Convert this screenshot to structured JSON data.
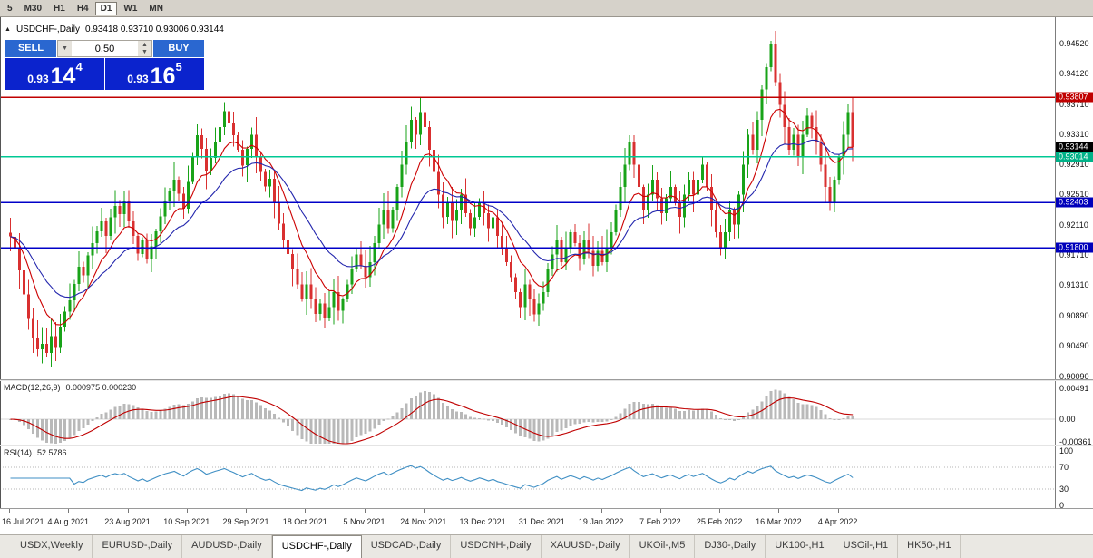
{
  "toolbar": {
    "timeframes": [
      {
        "label": "5",
        "active": false
      },
      {
        "label": "M30",
        "active": false
      },
      {
        "label": "H1",
        "active": false
      },
      {
        "label": "H4",
        "active": false
      },
      {
        "label": "D1",
        "active": true
      },
      {
        "label": "W1",
        "active": false
      },
      {
        "label": "MN",
        "active": false
      }
    ]
  },
  "chart_header": {
    "symbol": "USDCHF-,Daily",
    "ohlc": "0.93418 0.93710 0.93006 0.93144"
  },
  "trade_panel": {
    "sell_label": "SELL",
    "buy_label": "BUY",
    "volume": "0.50",
    "sell_price_whole": "0.93",
    "sell_price_big": "14",
    "sell_price_sup": "4",
    "buy_price_whole": "0.93",
    "buy_price_big": "16",
    "buy_price_sup": "5"
  },
  "price_scale": {
    "labels": [
      "0.94520",
      "0.94120",
      "0.93710",
      "0.93310",
      "0.92910",
      "0.92510",
      "0.92110",
      "0.91710",
      "0.91310",
      "0.90890",
      "0.90490",
      "0.90090"
    ],
    "markers": [
      {
        "label": "0.93807",
        "price": 0.93807,
        "bg": "#c00000"
      },
      {
        "label": "0.93144",
        "price": 0.93144,
        "bg": "#000000"
      },
      {
        "label": "0.93014",
        "price": 0.93014,
        "bg": "#00b288"
      },
      {
        "label": "0.92403",
        "price": 0.92403,
        "bg": "#0000bb"
      },
      {
        "label": "0.91800",
        "price": 0.918,
        "bg": "#0000bb"
      }
    ]
  },
  "hlines": [
    {
      "price": 0.93807,
      "color": "#c00000"
    },
    {
      "price": 0.93014,
      "color": "#00c894"
    },
    {
      "price": 0.92403,
      "color": "#0000c8"
    },
    {
      "price": 0.918,
      "color": "#0000c8"
    }
  ],
  "colors": {
    "candle_up": "#18a318",
    "candle_down": "#d93030",
    "ma_fast": "#cc0000",
    "ma_slow": "#2326ad",
    "macd_hist": "#b9b9b9",
    "macd_signal": "#c00000",
    "rsi_line": "#3f8fc4"
  },
  "chart_data": {
    "type": "candlestick",
    "title": "USDCHF-,Daily",
    "y_range": [
      0.9006,
      0.9479
    ],
    "x_labels": [
      "16 Jul 2021",
      "4 Aug 2021",
      "23 Aug 2021",
      "10 Sep 2021",
      "29 Sep 2021",
      "18 Oct 2021",
      "5 Nov 2021",
      "24 Nov 2021",
      "13 Dec 2021",
      "31 Dec 2021",
      "19 Jan 2022",
      "7 Feb 2022",
      "25 Feb 2022",
      "16 Mar 2022",
      "4 Apr 2022"
    ],
    "bars_per_label": 13,
    "first_open": 0.92,
    "close": [
      0.9195,
      0.918,
      0.915,
      0.9118,
      0.9085,
      0.906,
      0.9045,
      0.9052,
      0.904,
      0.9062,
      0.9048,
      0.9075,
      0.9095,
      0.911,
      0.9132,
      0.9155,
      0.9143,
      0.917,
      0.9186,
      0.9202,
      0.9215,
      0.9196,
      0.9221,
      0.9236,
      0.9225,
      0.9242,
      0.9215,
      0.9196,
      0.9172,
      0.919,
      0.9165,
      0.9182,
      0.9202,
      0.9222,
      0.9242,
      0.9256,
      0.9271,
      0.9252,
      0.9232,
      0.9268,
      0.9301,
      0.933,
      0.9312,
      0.9282,
      0.93,
      0.9322,
      0.9341,
      0.9362,
      0.9346,
      0.933,
      0.9311,
      0.929,
      0.9312,
      0.9331,
      0.9302,
      0.9281,
      0.9262,
      0.9272,
      0.9241,
      0.9212,
      0.9191,
      0.9172,
      0.9152,
      0.9131,
      0.9112,
      0.9131,
      0.9111,
      0.9092,
      0.9106,
      0.9087,
      0.9101,
      0.9121,
      0.9096,
      0.9111,
      0.9131,
      0.9151,
      0.9171,
      0.9156,
      0.9141,
      0.9161,
      0.9186,
      0.9211,
      0.9231,
      0.9206,
      0.9231,
      0.9261,
      0.9291,
      0.9321,
      0.9351,
      0.9331,
      0.9361,
      0.9341,
      0.9311,
      0.9281,
      0.9251,
      0.9221,
      0.9241,
      0.9216,
      0.9231,
      0.9251,
      0.9226,
      0.9206,
      0.9221,
      0.9241,
      0.9226,
      0.9206,
      0.9221,
      0.9196,
      0.9181,
      0.9161,
      0.9141,
      0.9121,
      0.9101,
      0.9131,
      0.9111,
      0.9091,
      0.9106,
      0.9121,
      0.9151,
      0.9171,
      0.9191,
      0.9161,
      0.9181,
      0.9201,
      0.9186,
      0.9166,
      0.9191,
      0.9176,
      0.9156,
      0.9176,
      0.9161,
      0.9181,
      0.9201,
      0.9231,
      0.9261,
      0.9291,
      0.9321,
      0.9291,
      0.9261,
      0.9231,
      0.9251,
      0.9271,
      0.9246,
      0.9226,
      0.9246,
      0.9261,
      0.9241,
      0.9221,
      0.9251,
      0.9271,
      0.9251,
      0.9271,
      0.9291,
      0.9261,
      0.9231,
      0.9201,
      0.9181,
      0.9201,
      0.9231,
      0.9211,
      0.9251,
      0.9291,
      0.9331,
      0.9311,
      0.9351,
      0.9391,
      0.9421,
      0.9451,
      0.9401,
      0.9371,
      0.9341,
      0.9311,
      0.9331,
      0.9301,
      0.9331,
      0.9356,
      0.9341,
      0.9321,
      0.9291,
      0.9261,
      0.9241,
      0.9271,
      0.9301,
      0.9331,
      0.9361,
      0.93144
    ],
    "indicators": {
      "ma_fast": {
        "period": 9
      },
      "ma_slow": {
        "period": 21
      },
      "macd": {
        "label": "MACD(12,26,9)",
        "values": "0.000975 0.000230",
        "scale": [
          "0.00491",
          "0.00",
          "-0.00361"
        ]
      },
      "rsi": {
        "label": "RSI(14)",
        "value": "52.5786",
        "scale": [
          "100",
          "70",
          "30",
          "0"
        ],
        "levels": [
          70,
          30
        ]
      }
    }
  },
  "tabs": {
    "items": [
      {
        "label": "USDX,Weekly",
        "active": false
      },
      {
        "label": "EURUSD-,Daily",
        "active": false
      },
      {
        "label": "AUDUSD-,Daily",
        "active": false
      },
      {
        "label": "USDCHF-,Daily",
        "active": true
      },
      {
        "label": "USDCAD-,Daily",
        "active": false
      },
      {
        "label": "USDCNH-,Daily",
        "active": false
      },
      {
        "label": "XAUUSD-,Daily",
        "active": false
      },
      {
        "label": "UKOil-,M5",
        "active": false
      },
      {
        "label": "DJ30-,Daily",
        "active": false
      },
      {
        "label": "UK100-,H1",
        "active": false
      },
      {
        "label": "USOil-,H1",
        "active": false
      },
      {
        "label": "HK50-,H1",
        "active": false
      }
    ]
  }
}
